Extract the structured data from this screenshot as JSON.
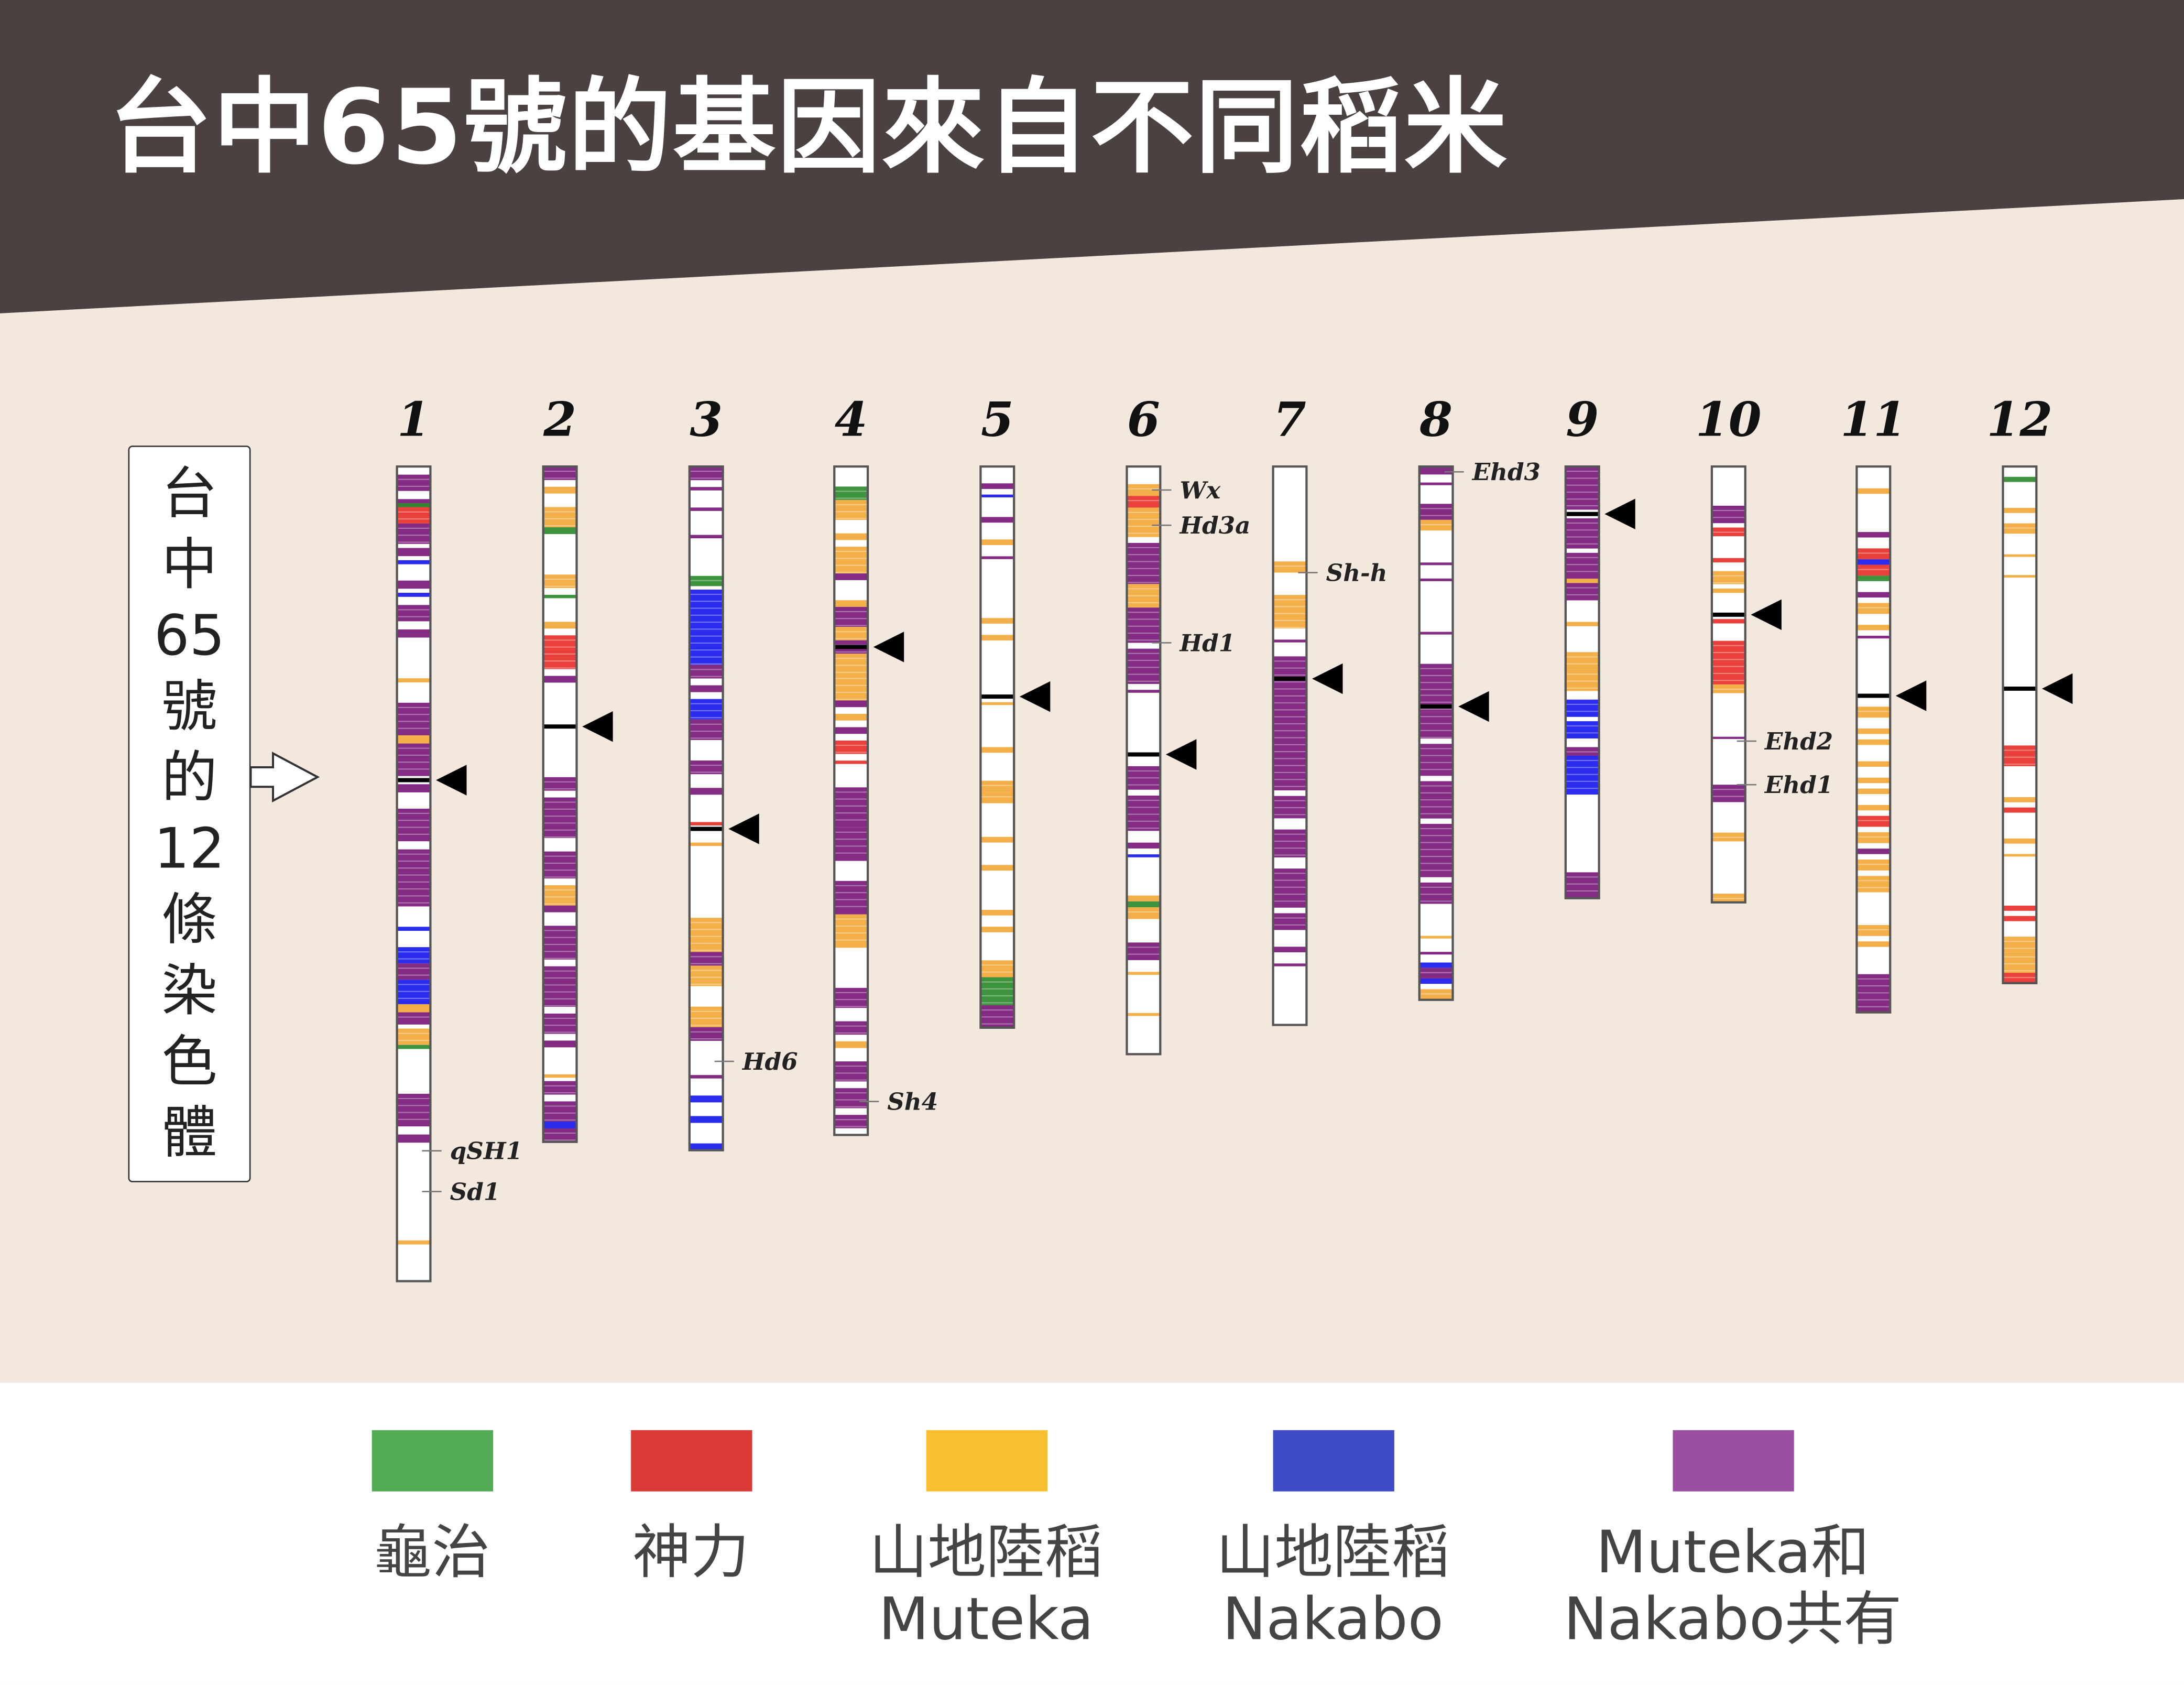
{
  "title": "台中65號的基因來自不同稻米",
  "side_label": [
    "台",
    "中",
    "65",
    "號",
    "的",
    "12",
    "條",
    "染",
    "色",
    "體"
  ],
  "colors": {
    "header": "#4a4140",
    "background": "#f2e8de",
    "G": "#2e8b2e",
    "R": "#e8302a",
    "Y": "#f2a93b",
    "B": "#1a1aee",
    "P": "#7a1a7a",
    "K": "#000000"
  },
  "legend": [
    {
      "color": "#52ab52",
      "lines": [
        "龜治"
      ]
    },
    {
      "color": "#d93a35",
      "lines": [
        "神力"
      ]
    },
    {
      "color": "#f9bf31",
      "lines": [
        "山地陸稻",
        "Muteka"
      ]
    },
    {
      "color": "#3f4bc6",
      "lines": [
        "山地陸稻",
        "Nakabo"
      ]
    },
    {
      "color": "#9a4fa0",
      "lines": [
        "Muteka和",
        "Nakabo共有"
      ]
    }
  ],
  "chromosomes": [
    {
      "label": "1",
      "length": 585,
      "marker": 38.5,
      "genes": [
        {
          "name": "qSH1",
          "pos": 84
        },
        {
          "name": "Sd1",
          "pos": 89
        }
      ],
      "bands": [
        [
          1,
          3,
          "P"
        ],
        [
          4,
          5,
          "P"
        ],
        [
          4.5,
          5,
          "G"
        ],
        [
          5,
          7,
          "R"
        ],
        [
          7,
          9.5,
          "P"
        ],
        [
          10,
          11,
          "P"
        ],
        [
          11.5,
          12,
          "B"
        ],
        [
          14,
          15,
          "P"
        ],
        [
          15.5,
          16,
          "B"
        ],
        [
          17,
          19,
          "P"
        ],
        [
          20,
          21,
          "P"
        ],
        [
          26,
          26.5,
          "Y"
        ],
        [
          29,
          33,
          "P"
        ],
        [
          33,
          34,
          "Y"
        ],
        [
          34,
          38,
          "P"
        ],
        [
          39,
          40,
          "P"
        ],
        [
          42,
          46,
          "P"
        ],
        [
          47,
          54,
          "P"
        ],
        [
          56.5,
          57,
          "B"
        ],
        [
          59,
          61,
          "B"
        ],
        [
          61,
          63,
          "P"
        ],
        [
          63,
          66,
          "B"
        ],
        [
          66,
          67,
          "Y"
        ],
        [
          67,
          68.5,
          "P"
        ],
        [
          69,
          71,
          "Y"
        ],
        [
          71,
          71.5,
          "G"
        ],
        [
          77,
          81,
          "P"
        ],
        [
          82,
          83,
          "P"
        ],
        [
          95,
          95.5,
          "Y"
        ]
      ]
    },
    {
      "label": "2",
      "length": 485,
      "marker": 38.5,
      "genes": [],
      "bands": [
        [
          0,
          2,
          "P"
        ],
        [
          3,
          4,
          "Y"
        ],
        [
          6,
          9,
          "Y"
        ],
        [
          9,
          10,
          "G"
        ],
        [
          16,
          18,
          "Y"
        ],
        [
          19,
          19.5,
          "G"
        ],
        [
          23,
          24,
          "Y"
        ],
        [
          25,
          30,
          "R"
        ],
        [
          31,
          32,
          "P"
        ],
        [
          46,
          48,
          "P"
        ],
        [
          49,
          55,
          "P"
        ],
        [
          57,
          61,
          "P"
        ],
        [
          62,
          65,
          "Y"
        ],
        [
          65,
          66,
          "P"
        ],
        [
          68,
          73,
          "P"
        ],
        [
          74,
          80,
          "P"
        ],
        [
          81,
          84,
          "P"
        ],
        [
          85,
          86,
          "P"
        ],
        [
          90,
          90.5,
          "Y"
        ],
        [
          91,
          93,
          "P"
        ],
        [
          94,
          97,
          "P"
        ],
        [
          97,
          98,
          "B"
        ],
        [
          98,
          100,
          "P"
        ]
      ]
    },
    {
      "label": "3",
      "length": 491,
      "marker": 53,
      "genes": [
        {
          "name": "Hd6",
          "pos": 87
        }
      ],
      "bands": [
        [
          0,
          2,
          "P"
        ],
        [
          3,
          3.5,
          "P"
        ],
        [
          6,
          6.5,
          "P"
        ],
        [
          10,
          10.5,
          "P"
        ],
        [
          16,
          17.5,
          "G"
        ],
        [
          18,
          29,
          "B"
        ],
        [
          29,
          31,
          "P"
        ],
        [
          32,
          33,
          "P"
        ],
        [
          34,
          37,
          "B"
        ],
        [
          37,
          40,
          "P"
        ],
        [
          43,
          45,
          "P"
        ],
        [
          47,
          48,
          "P"
        ],
        [
          52,
          52.5,
          "R"
        ],
        [
          55,
          55.5,
          "Y"
        ],
        [
          66,
          71,
          "Y"
        ],
        [
          71,
          73,
          "P"
        ],
        [
          73,
          76,
          "Y"
        ],
        [
          79,
          82,
          "Y"
        ],
        [
          82,
          84,
          "P"
        ],
        [
          89,
          89.5,
          "P"
        ],
        [
          92,
          93,
          "B"
        ],
        [
          95,
          96,
          "B"
        ],
        [
          99,
          100,
          "B"
        ]
      ]
    },
    {
      "label": "4",
      "length": 480,
      "marker": 27,
      "genes": [
        {
          "name": "Sh4",
          "pos": 95
        }
      ],
      "bands": [
        [
          3,
          5,
          "G"
        ],
        [
          5,
          8,
          "Y"
        ],
        [
          10,
          11,
          "Y"
        ],
        [
          12,
          16,
          "Y"
        ],
        [
          16,
          17,
          "P"
        ],
        [
          20,
          21,
          "Y"
        ],
        [
          21,
          24,
          "P"
        ],
        [
          24,
          26,
          "Y"
        ],
        [
          26,
          28,
          "P"
        ],
        [
          28,
          31,
          "Y"
        ],
        [
          31,
          35,
          "Y"
        ],
        [
          35,
          36,
          "P"
        ],
        [
          37,
          38,
          "Y"
        ],
        [
          39,
          40,
          "P"
        ],
        [
          41,
          43,
          "R"
        ],
        [
          44,
          44.5,
          "R"
        ],
        [
          48,
          54,
          "P"
        ],
        [
          54,
          59,
          "P"
        ],
        [
          62,
          67,
          "P"
        ],
        [
          67,
          71,
          "Y"
        ],
        [
          71,
          72,
          "Y"
        ],
        [
          78,
          81,
          "P"
        ],
        [
          83,
          85,
          "P"
        ],
        [
          86,
          87,
          "Y"
        ],
        [
          89,
          92,
          "P"
        ],
        [
          93,
          96,
          "P"
        ],
        [
          97,
          99,
          "P"
        ]
      ]
    },
    {
      "label": "5",
      "length": 403,
      "marker": 41,
      "genes": [],
      "bands": [
        [
          3,
          4,
          "P"
        ],
        [
          5,
          5.5,
          "B"
        ],
        [
          9,
          10,
          "P"
        ],
        [
          13,
          14,
          "Y"
        ],
        [
          16,
          16.5,
          "P"
        ],
        [
          27,
          28,
          "Y"
        ],
        [
          30,
          31,
          "Y"
        ],
        [
          42,
          42.5,
          "Y"
        ],
        [
          50,
          51,
          "Y"
        ],
        [
          56,
          58,
          "Y"
        ],
        [
          58,
          60,
          "Y"
        ],
        [
          66,
          67,
          "Y"
        ],
        [
          71,
          72,
          "Y"
        ],
        [
          79,
          80,
          "Y"
        ],
        [
          82,
          83,
          "Y"
        ],
        [
          88,
          91,
          "Y"
        ],
        [
          91,
          96,
          "G"
        ],
        [
          96,
          100,
          "P"
        ]
      ]
    },
    {
      "label": "6",
      "length": 422,
      "marker": 49,
      "genes": [
        {
          "name": "Wx",
          "pos": 4
        },
        {
          "name": "Hd3a",
          "pos": 10
        },
        {
          "name": "Hd1",
          "pos": 30
        }
      ],
      "bands": [
        [
          3,
          5,
          "Y"
        ],
        [
          5,
          7,
          "R"
        ],
        [
          7,
          12,
          "Y"
        ],
        [
          13,
          20,
          "P"
        ],
        [
          20,
          24,
          "Y"
        ],
        [
          24,
          30,
          "P"
        ],
        [
          31,
          37,
          "P"
        ],
        [
          38,
          38.5,
          "P"
        ],
        [
          51,
          55,
          "P"
        ],
        [
          56,
          62,
          "P"
        ],
        [
          64,
          65,
          "P"
        ],
        [
          66,
          66.5,
          "B"
        ],
        [
          73,
          74,
          "Y"
        ],
        [
          74,
          75,
          "G"
        ],
        [
          75,
          77,
          "Y"
        ],
        [
          81,
          84,
          "P"
        ],
        [
          86,
          86.5,
          "Y"
        ],
        [
          93,
          93.5,
          "Y"
        ]
      ]
    },
    {
      "label": "7",
      "length": 401,
      "marker": 38,
      "genes": [
        {
          "name": "Sh-h",
          "pos": 19
        }
      ],
      "bands": [
        [
          17,
          19,
          "Y"
        ],
        [
          23,
          29,
          "Y"
        ],
        [
          31,
          31.5,
          "P"
        ],
        [
          34,
          58,
          "P"
        ],
        [
          59,
          63,
          "P"
        ],
        [
          65,
          70,
          "P"
        ],
        [
          72,
          79,
          "P"
        ],
        [
          80,
          83,
          "P"
        ],
        [
          86,
          87,
          "P"
        ],
        [
          89,
          89.5,
          "P"
        ]
      ]
    },
    {
      "label": "8",
      "length": 383,
      "marker": 45,
      "genes": [
        {
          "name": "Ehd3",
          "pos": 1
        }
      ],
      "bands": [
        [
          0,
          1.5,
          "P"
        ],
        [
          3,
          3.5,
          "P"
        ],
        [
          7,
          10,
          "P"
        ],
        [
          10,
          12,
          "Y"
        ],
        [
          18,
          18.5,
          "P"
        ],
        [
          21,
          21.5,
          "P"
        ],
        [
          31,
          31.5,
          "P"
        ],
        [
          37,
          42,
          "P"
        ],
        [
          42,
          46,
          "P"
        ],
        [
          46,
          51,
          "P"
        ],
        [
          52,
          58,
          "P"
        ],
        [
          59,
          66,
          "P"
        ],
        [
          67,
          77,
          "P"
        ],
        [
          78,
          82,
          "P"
        ],
        [
          88,
          88.5,
          "Y"
        ],
        [
          91,
          91.5,
          "P"
        ],
        [
          93,
          94,
          "B"
        ],
        [
          94,
          96,
          "P"
        ],
        [
          96,
          97,
          "B"
        ],
        [
          98,
          100,
          "Y"
        ]
      ]
    },
    {
      "label": "9",
      "length": 310,
      "marker": 11,
      "genes": [],
      "bands": [
        [
          0,
          8,
          "P"
        ],
        [
          8,
          10,
          "P"
        ],
        [
          12,
          19,
          "P"
        ],
        [
          20,
          26,
          "P"
        ],
        [
          26,
          27,
          "Y"
        ],
        [
          27,
          31,
          "P"
        ],
        [
          36,
          37,
          "Y"
        ],
        [
          43,
          47,
          "Y"
        ],
        [
          47,
          52,
          "Y"
        ],
        [
          54,
          58,
          "B"
        ],
        [
          59,
          63,
          "B"
        ],
        [
          65,
          67,
          "P"
        ],
        [
          67,
          76,
          "B"
        ],
        [
          94,
          100,
          "P"
        ]
      ]
    },
    {
      "label": "10",
      "length": 313,
      "marker": 34,
      "genes": [
        {
          "name": "Ehd2",
          "pos": 63
        },
        {
          "name": "Ehd1",
          "pos": 73
        }
      ],
      "bands": [
        [
          9,
          13,
          "P"
        ],
        [
          14,
          16,
          "R"
        ],
        [
          21,
          22,
          "R"
        ],
        [
          24,
          27,
          "Y"
        ],
        [
          28,
          29,
          "Y"
        ],
        [
          35,
          36,
          "R"
        ],
        [
          40,
          50,
          "R"
        ],
        [
          50,
          52,
          "Y"
        ],
        [
          62,
          62.5,
          "P"
        ],
        [
          73,
          77,
          "P"
        ],
        [
          84,
          86,
          "Y"
        ],
        [
          98,
          100,
          "Y"
        ]
      ]
    },
    {
      "label": "11",
      "length": 392,
      "marker": 42,
      "genes": [],
      "bands": [
        [
          4,
          5,
          "Y"
        ],
        [
          12,
          13,
          "P"
        ],
        [
          15,
          17,
          "R"
        ],
        [
          17,
          18,
          "B"
        ],
        [
          18,
          20,
          "R"
        ],
        [
          20,
          21,
          "G"
        ],
        [
          23,
          24,
          "P"
        ],
        [
          25,
          27,
          "Y"
        ],
        [
          29,
          30,
          "Y"
        ],
        [
          31,
          31.5,
          "P"
        ],
        [
          44,
          46,
          "Y"
        ],
        [
          48,
          49,
          "Y"
        ],
        [
          50,
          51,
          "Y"
        ],
        [
          54,
          55,
          "Y"
        ],
        [
          57,
          58,
          "Y"
        ],
        [
          59,
          60,
          "Y"
        ],
        [
          62,
          63,
          "Y"
        ],
        [
          64,
          66,
          "R"
        ],
        [
          67,
          69,
          "Y"
        ],
        [
          70,
          71,
          "P"
        ],
        [
          72,
          74,
          "Y"
        ],
        [
          75,
          78,
          "Y"
        ],
        [
          84,
          86,
          "Y"
        ],
        [
          87,
          88,
          "Y"
        ],
        [
          93,
          100,
          "P"
        ]
      ]
    },
    {
      "label": "12",
      "length": 371,
      "marker": 43,
      "genes": [],
      "bands": [
        [
          2,
          3,
          "G"
        ],
        [
          8,
          9,
          "Y"
        ],
        [
          11,
          13,
          "Y"
        ],
        [
          17,
          17.5,
          "Y"
        ],
        [
          21,
          21.5,
          "Y"
        ],
        [
          54,
          58,
          "R"
        ],
        [
          64,
          65,
          "Y"
        ],
        [
          66,
          67,
          "R"
        ],
        [
          72,
          73,
          "Y"
        ],
        [
          75,
          75.5,
          "Y"
        ],
        [
          85,
          86,
          "R"
        ],
        [
          87,
          88,
          "R"
        ],
        [
          91,
          94,
          "Y"
        ],
        [
          94,
          98,
          "Y"
        ],
        [
          98,
          100,
          "R"
        ]
      ]
    }
  ]
}
